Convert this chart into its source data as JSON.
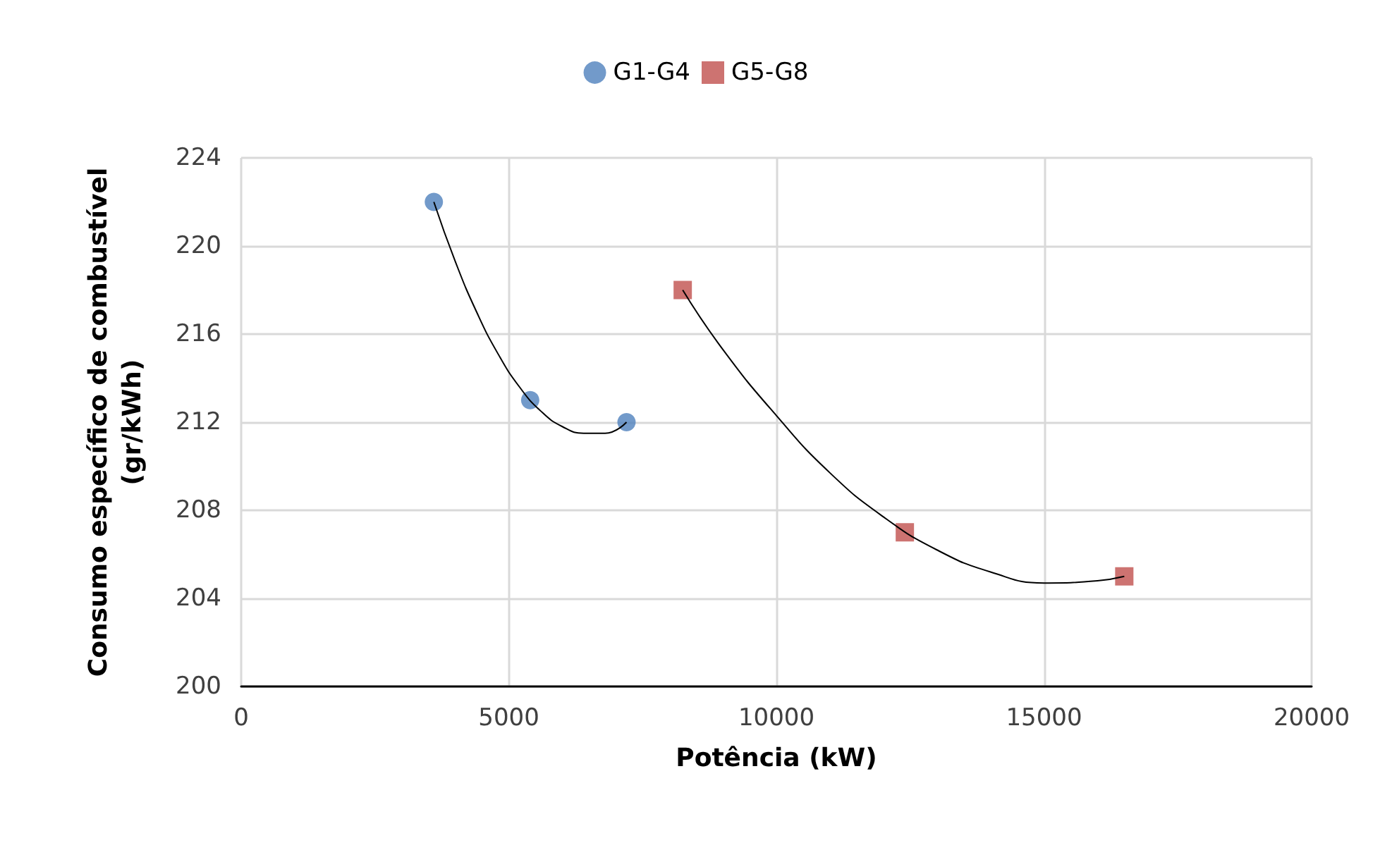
{
  "chart_data": {
    "type": "scatter",
    "xlabel": "Potência (kW)",
    "ylabel": "Consumo específico de combustível\n(gr/kWh)",
    "xlim": [
      0,
      20000
    ],
    "xticks": [
      0,
      5000,
      10000,
      15000,
      20000
    ],
    "ylim": [
      200,
      224
    ],
    "yticks": [
      200,
      204,
      208,
      212,
      216,
      220,
      224
    ],
    "grid": true,
    "legend": "top",
    "series": [
      {
        "name": "G1-G4",
        "color": "#4f81bd",
        "marker": "circle",
        "x": [
          3600,
          5400,
          7200
        ],
        "values": [
          222,
          213,
          212
        ]
      },
      {
        "name": "G5-G8",
        "color": "#c0504d",
        "marker": "square",
        "x": [
          8250,
          12400,
          16500
        ],
        "values": [
          218,
          207,
          205
        ]
      },
      {
        "type": "line",
        "color": "#000000",
        "marker": "none",
        "x": [
          3600,
          4000,
          4400,
          4800,
          5200,
          5600,
          6000,
          6400,
          6800,
          7200
        ],
        "values": [
          222,
          219.3,
          217,
          215.1,
          213.6,
          212.5,
          211.8,
          211.5,
          211.5,
          212
        ]
      },
      {
        "type": "line",
        "color": "#000000",
        "marker": "none",
        "x": [
          8250,
          9000,
          10000,
          11000,
          12000,
          13000,
          14000,
          15000,
          16000,
          16500
        ],
        "values": [
          218,
          215.3,
          212.3,
          209.7,
          207.7,
          206.2,
          205.2,
          204.7,
          204.8,
          205
        ]
      }
    ]
  }
}
